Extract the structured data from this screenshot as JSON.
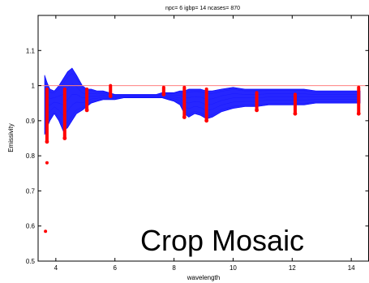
{
  "chart_data": {
    "type": "line",
    "title": "npc= 6   igbp=  14    ncases=    870",
    "xlabel": "wavelength",
    "ylabel": "Emissivity",
    "xlim": [
      3.4,
      14.6
    ],
    "ylim": [
      0.5,
      1.2
    ],
    "x_ticks": [
      4,
      6,
      8,
      10,
      12,
      14
    ],
    "y_ticks": [
      0.5,
      0.6,
      0.7,
      0.8,
      0.9,
      1,
      1.1
    ],
    "y_tick_labels": [
      "0.5",
      "0.6",
      "0.7",
      "0.8",
      "0.9",
      "1",
      "1.1"
    ],
    "grid": false,
    "reference_line": {
      "y": 1.0,
      "color": "#ff8080"
    },
    "envelope": {
      "name": "spectra",
      "color": "#0000ff",
      "x": [
        3.62,
        3.7,
        3.8,
        3.95,
        4.1,
        4.25,
        4.4,
        4.55,
        4.7,
        4.9,
        5.05,
        5.2,
        5.4,
        5.6,
        5.8,
        6.0,
        6.3,
        6.6,
        7.0,
        7.4,
        7.6,
        7.8,
        8.0,
        8.2,
        8.35,
        8.5,
        8.7,
        8.9,
        9.1,
        9.3,
        9.6,
        10.0,
        10.4,
        10.8,
        11.2,
        11.6,
        12.0,
        12.4,
        12.8,
        13.2,
        13.6,
        14.0,
        14.3
      ],
      "upper": [
        1.03,
        1.01,
        0.99,
        0.985,
        1.0,
        1.02,
        1.04,
        1.05,
        1.03,
        1.0,
        0.99,
        0.99,
        0.985,
        0.985,
        0.98,
        0.975,
        0.975,
        0.975,
        0.975,
        0.975,
        0.98,
        0.98,
        0.98,
        0.985,
        0.985,
        0.99,
        0.99,
        0.99,
        0.985,
        0.985,
        0.99,
        0.995,
        0.99,
        0.99,
        0.99,
        0.99,
        0.99,
        0.99,
        0.985,
        0.985,
        0.985,
        0.985,
        0.985
      ],
      "lower": [
        0.86,
        0.88,
        0.9,
        0.92,
        0.9,
        0.87,
        0.88,
        0.9,
        0.92,
        0.93,
        0.94,
        0.95,
        0.955,
        0.96,
        0.96,
        0.96,
        0.965,
        0.965,
        0.965,
        0.965,
        0.965,
        0.96,
        0.955,
        0.945,
        0.92,
        0.91,
        0.92,
        0.915,
        0.905,
        0.91,
        0.925,
        0.935,
        0.94,
        0.94,
        0.945,
        0.945,
        0.945,
        0.945,
        0.95,
        0.95,
        0.95,
        0.95,
        0.95
      ]
    },
    "markers": {
      "name": "sample points",
      "color": "#ff0000",
      "points": [
        {
          "x": 3.7,
          "ymin": 0.84,
          "ymax": 0.99
        },
        {
          "x": 4.3,
          "ymin": 0.85,
          "ymax": 0.99
        },
        {
          "x": 5.05,
          "ymin": 0.93,
          "ymax": 0.99
        },
        {
          "x": 5.85,
          "ymin": 0.97,
          "ymax": 1.0
        },
        {
          "x": 7.65,
          "ymin": 0.975,
          "ymax": 0.995
        },
        {
          "x": 8.35,
          "ymin": 0.91,
          "ymax": 0.995
        },
        {
          "x": 9.1,
          "ymin": 0.9,
          "ymax": 0.99
        },
        {
          "x": 10.8,
          "ymin": 0.93,
          "ymax": 0.98
        },
        {
          "x": 12.1,
          "ymin": 0.92,
          "ymax": 0.975
        },
        {
          "x": 14.25,
          "ymin": 0.92,
          "ymax": 0.995
        }
      ],
      "outliers": [
        {
          "x": 3.65,
          "y": 0.585
        },
        {
          "x": 3.7,
          "y": 0.78
        }
      ]
    }
  },
  "overlay": {
    "caption": "Crop Mosaic"
  }
}
